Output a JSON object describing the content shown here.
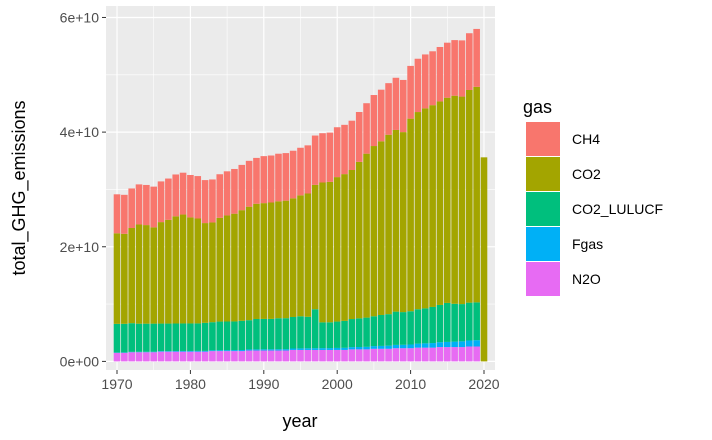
{
  "chart_data": {
    "type": "bar",
    "stacked": true,
    "xlabel": "year",
    "ylabel": "total_GHG_emissions",
    "x_ticks": [
      "1970",
      "1980",
      "1990",
      "2000",
      "2010",
      "2020"
    ],
    "y_ticks": [
      "0e+00",
      "2e+10",
      "4e+10",
      "6e+10"
    ],
    "xlim": [
      1968.5,
      2021.5
    ],
    "ylim": [
      -1500000000,
      62000000000
    ],
    "legend": {
      "title": "gas",
      "placement": "right"
    },
    "x": [
      1970,
      1971,
      1972,
      1973,
      1974,
      1975,
      1976,
      1977,
      1978,
      1979,
      1980,
      1981,
      1982,
      1983,
      1984,
      1985,
      1986,
      1987,
      1988,
      1989,
      1990,
      1991,
      1992,
      1993,
      1994,
      1995,
      1996,
      1997,
      1998,
      1999,
      2000,
      2001,
      2002,
      2003,
      2004,
      2005,
      2006,
      2007,
      2008,
      2009,
      2010,
      2011,
      2012,
      2013,
      2014,
      2015,
      2016,
      2017,
      2018,
      2019,
      2020
    ],
    "series": [
      {
        "name": "N2O",
        "color": "#E76BF3",
        "values": [
          1500000000.0,
          1500000000.0,
          1600000000.0,
          1600000000.0,
          1600000000.0,
          1600000000.0,
          1700000000.0,
          1700000000.0,
          1700000000.0,
          1700000000.0,
          1700000000.0,
          1700000000.0,
          1700000000.0,
          1800000000.0,
          1800000000.0,
          1800000000.0,
          1800000000.0,
          1800000000.0,
          1900000000.0,
          1900000000.0,
          1900000000.0,
          1900000000.0,
          1900000000.0,
          1900000000.0,
          2000000000.0,
          2000000000.0,
          2000000000.0,
          2000000000.0,
          2000000000.0,
          2000000000.0,
          2000000000.0,
          2000000000.0,
          2100000000.0,
          2100000000.0,
          2100000000.0,
          2200000000.0,
          2200000000.0,
          2200000000.0,
          2300000000.0,
          2300000000.0,
          2300000000.0,
          2400000000.0,
          2400000000.0,
          2400000000.0,
          2500000000.0,
          2500000000.0,
          2500000000.0,
          2500000000.0,
          2600000000.0,
          2600000000.0,
          0
        ]
      },
      {
        "name": "Fgas",
        "color": "#00B0F6",
        "values": [
          50000000.0,
          60000000.0,
          70000000.0,
          80000000.0,
          80000000.0,
          90000000.0,
          100000000.0,
          100000000.0,
          110000000.0,
          120000000.0,
          120000000.0,
          130000000.0,
          130000000.0,
          140000000.0,
          150000000.0,
          160000000.0,
          170000000.0,
          180000000.0,
          190000000.0,
          200000000.0,
          210000000.0,
          220000000.0,
          230000000.0,
          240000000.0,
          250000000.0,
          270000000.0,
          290000000.0,
          300000000.0,
          310000000.0,
          320000000.0,
          350000000.0,
          370000000.0,
          390000000.0,
          410000000.0,
          440000000.0,
          470000000.0,
          500000000.0,
          540000000.0,
          580000000.0,
          600000000.0,
          650000000.0,
          700000000.0,
          750000000.0,
          800000000.0,
          850000000.0,
          900000000.0,
          950000000.0,
          1000000000.0,
          1050000000.0,
          1100000000.0,
          0
        ]
      },
      {
        "name": "CO2_LULUCF",
        "color": "#00BF7D",
        "values": [
          5000000000.0,
          5000000000.0,
          5000000000.0,
          4900000000.0,
          4900000000.0,
          4900000000.0,
          4800000000.0,
          4800000000.0,
          4800000000.0,
          4800000000.0,
          4800000000.0,
          4800000000.0,
          4900000000.0,
          4900000000.0,
          5000000000.0,
          5000000000.0,
          5000000000.0,
          5100000000.0,
          5100000000.0,
          5300000000.0,
          5300000000.0,
          5300000000.0,
          5400000000.0,
          5400000000.0,
          5500000000.0,
          5600000000.0,
          5500000000.0,
          6800000000.0,
          4500000000.0,
          4500000000.0,
          4600000000.0,
          4700000000.0,
          4900000000.0,
          5000000000.0,
          5100000000.0,
          5200000000.0,
          5400000000.0,
          5500000000.0,
          5800000000.0,
          5700000000.0,
          5800000000.0,
          6000000000.0,
          6100000000.0,
          6300000000.0,
          6500000000.0,
          6800000000.0,
          6600000000.0,
          6500000000.0,
          6600000000.0,
          6600000000.0,
          0
        ]
      },
      {
        "name": "CO2",
        "color": "#A3A500",
        "values": [
          15800000000.0,
          15700000000.0,
          16600000000.0,
          17300000000.0,
          17200000000.0,
          16800000000.0,
          17700000000.0,
          18100000000.0,
          18700000000.0,
          19000000000.0,
          18500000000.0,
          18300000000.0,
          17400000000.0,
          17400000000.0,
          18100000000.0,
          18500000000.0,
          18800000000.0,
          19300000000.0,
          19800000000.0,
          20100000000.0,
          20200000000.0,
          20300000000.0,
          20400000000.0,
          20500000000.0,
          20700000000.0,
          21100000000.0,
          21500000000.0,
          21700000000.0,
          24400000000.0,
          24500000000.0,
          25200000000.0,
          25600000000.0,
          26000000000.0,
          27300000000.0,
          28600000000.0,
          29700000000.0,
          30300000000.0,
          31300000000.0,
          31700000000.0,
          31400000000.0,
          33600000000.0,
          34400000000.0,
          34900000000.0,
          35200000000.0,
          35500000000.0,
          35800000000.0,
          36300000000.0,
          36200000000.0,
          37100000000.0,
          37600000000.0,
          35600000000.0
        ]
      },
      {
        "name": "CH4",
        "color": "#F8766D",
        "values": [
          6800000000.0,
          6800000000.0,
          6900000000.0,
          7000000000.0,
          7000000000.0,
          7100000000.0,
          7100000000.0,
          7200000000.0,
          7300000000.0,
          7300000000.0,
          7400000000.0,
          7400000000.0,
          7500000000.0,
          7500000000.0,
          7600000000.0,
          7700000000.0,
          7800000000.0,
          7900000000.0,
          8000000000.0,
          8000000000.0,
          8200000000.0,
          8200000000.0,
          8300000000.0,
          8300000000.0,
          8300000000.0,
          8300000000.0,
          8400000000.0,
          8600000000.0,
          8600000000.0,
          8600000000.0,
          8700000000.0,
          8600000000.0,
          8600000000.0,
          8700000000.0,
          8800000000.0,
          8900000000.0,
          9000000000.0,
          9000000000.0,
          9100000000.0,
          9100000000.0,
          9200000000.0,
          9300000000.0,
          9400000000.0,
          9400000000.0,
          9500000000.0,
          9600000000.0,
          9700000000.0,
          9800000000.0,
          9900000000.0,
          10100000000.0,
          0
        ]
      }
    ],
    "legend_order": [
      "CH4",
      "CO2",
      "CO2_LULUCF",
      "Fgas",
      "N2O"
    ],
    "panel_background": "#EBEBEB",
    "grid": true
  }
}
